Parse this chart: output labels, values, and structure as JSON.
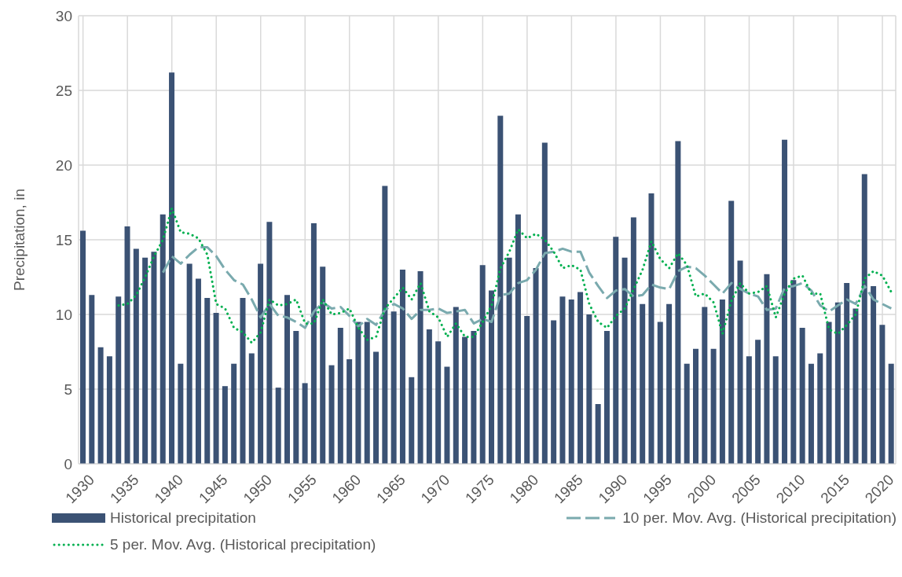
{
  "chart_data": {
    "type": "bar",
    "ylabel": "Precipitation, in",
    "x": [
      1930,
      1931,
      1932,
      1933,
      1934,
      1935,
      1936,
      1937,
      1938,
      1939,
      1940,
      1941,
      1942,
      1943,
      1944,
      1945,
      1946,
      1947,
      1948,
      1949,
      1950,
      1951,
      1952,
      1953,
      1954,
      1955,
      1956,
      1957,
      1958,
      1959,
      1960,
      1961,
      1962,
      1963,
      1964,
      1965,
      1966,
      1967,
      1968,
      1969,
      1970,
      1971,
      1972,
      1973,
      1974,
      1975,
      1976,
      1977,
      1978,
      1979,
      1980,
      1981,
      1982,
      1983,
      1984,
      1985,
      1986,
      1987,
      1988,
      1989,
      1990,
      1991,
      1992,
      1993,
      1994,
      1995,
      1996,
      1997,
      1998,
      1999,
      2000,
      2001,
      2002,
      2003,
      2004,
      2005,
      2006,
      2007,
      2008,
      2009,
      2010,
      2011,
      2012,
      2013,
      2014,
      2015,
      2016,
      2017,
      2018,
      2019,
      2020,
      2021
    ],
    "series": [
      {
        "name": "Historical precipitation",
        "color": "#3b5274",
        "values": [
          15.6,
          11.3,
          7.8,
          7.2,
          11.2,
          15.9,
          14.4,
          13.8,
          14.2,
          16.7,
          26.2,
          6.7,
          13.4,
          12.4,
          11.1,
          10.1,
          5.2,
          6.7,
          11.1,
          7.4,
          13.4,
          16.2,
          5.1,
          11.3,
          8.9,
          5.4,
          16.1,
          13.2,
          6.6,
          9.1,
          7.0,
          9.5,
          9.5,
          7.5,
          18.6,
          10.2,
          13.0,
          5.8,
          12.9,
          9.0,
          8.2,
          6.5,
          10.5,
          8.5,
          8.9,
          13.3,
          11.6,
          23.3,
          13.8,
          16.7,
          9.9,
          13.1,
          21.5,
          9.6,
          11.2,
          11.0,
          11.5,
          10.0,
          4.0,
          8.9,
          15.2,
          13.8,
          16.5,
          10.7,
          18.1,
          9.5,
          10.7,
          21.6,
          6.7,
          7.7,
          10.5,
          7.7,
          11.0,
          17.6,
          13.6,
          7.2,
          8.3,
          12.7,
          7.2,
          21.7,
          12.3,
          9.1,
          6.7,
          7.4,
          9.5,
          10.8,
          12.1,
          10.4,
          19.4,
          11.9,
          9.3,
          6.7
        ]
      },
      {
        "name": "10 per. Mov. Avg. (Historical precipitation)",
        "type": "line",
        "line_style": "dashed",
        "color": "#7aaaae",
        "values": [
          null,
          null,
          null,
          null,
          null,
          null,
          null,
          null,
          null,
          12.8,
          13.9,
          13.4,
          14.0,
          14.5,
          14.5,
          13.9,
          13.0,
          12.3,
          12.0,
          11.0,
          9.8,
          10.7,
          9.9,
          9.8,
          9.5,
          9.1,
          10.2,
          10.8,
          10.4,
          10.5,
          9.9,
          9.2,
          9.7,
          9.3,
          10.3,
          10.7,
          10.4,
          9.7,
          10.3,
          10.3,
          10.4,
          10.1,
          10.2,
          10.3,
          9.4,
          9.7,
          9.5,
          11.3,
          11.4,
          12.1,
          12.3,
          13.0,
          14.1,
          14.2,
          14.4,
          14.2,
          14.2,
          12.8,
          11.9,
          11.1,
          11.6,
          11.7,
          11.2,
          11.3,
          12.0,
          11.8,
          11.7,
          12.9,
          13.2,
          13.1,
          12.6,
          12.0,
          11.4,
          12.1,
          11.7,
          11.4,
          11.2,
          10.3,
          10.4,
          11.8,
          11.9,
          12.1,
          11.6,
          10.6,
          10.2,
          10.6,
          11.0,
          10.7,
          11.9,
          11.0,
          10.7,
          10.4
        ]
      },
      {
        "name": "5 per. Mov. Avg. (Historical precipitation)",
        "type": "line",
        "line_style": "dotted",
        "color": "#00b050",
        "values": [
          null,
          null,
          null,
          null,
          10.6,
          10.7,
          11.3,
          12.5,
          13.9,
          15.0,
          17.1,
          15.5,
          15.4,
          15.1,
          14.0,
          10.7,
          10.4,
          9.1,
          8.8,
          8.1,
          8.8,
          11.0,
          10.6,
          10.7,
          11.0,
          9.4,
          9.4,
          11.0,
          10.0,
          10.1,
          10.4,
          9.1,
          8.3,
          8.5,
          10.4,
          11.1,
          11.8,
          11.0,
          12.1,
          10.2,
          9.8,
          8.5,
          9.4,
          8.5,
          8.5,
          9.5,
          10.6,
          13.1,
          14.2,
          15.7,
          15.1,
          15.4,
          15.0,
          14.2,
          13.1,
          13.3,
          13.0,
          10.7,
          9.5,
          9.1,
          9.9,
          10.4,
          11.7,
          13.0,
          14.9,
          13.7,
          13.1,
          14.1,
          13.3,
          11.2,
          11.4,
          10.8,
          8.7,
          10.9,
          12.1,
          11.4,
          11.5,
          11.9,
          9.8,
          11.4,
          12.4,
          12.6,
          11.4,
          11.4,
          9.0,
          8.7,
          9.3,
          10.0,
          12.4,
          12.9,
          12.6,
          11.5
        ]
      }
    ],
    "xlim": [
      1929.5,
      2021.5
    ],
    "xticks": [
      1930,
      1935,
      1940,
      1945,
      1950,
      1955,
      1960,
      1965,
      1970,
      1975,
      1980,
      1985,
      1990,
      1995,
      2000,
      2005,
      2010,
      2015,
      2020
    ],
    "ylim": [
      0,
      30
    ],
    "yticks": [
      0,
      5,
      10,
      15,
      20,
      25,
      30
    ],
    "grid": true,
    "legend": "bottom",
    "marker": "none"
  }
}
